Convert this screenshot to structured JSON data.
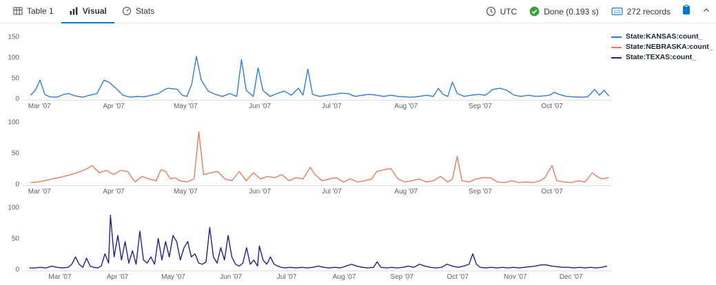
{
  "toolbar": {
    "tabs": [
      {
        "label": "Table 1",
        "icon": "table-icon",
        "active": false
      },
      {
        "label": "Visual",
        "icon": "bar-chart-icon",
        "active": true
      },
      {
        "label": "Stats",
        "icon": "gauge-icon",
        "active": false
      }
    ],
    "status": {
      "timezone": "UTC",
      "done": "Done (0.193 s)",
      "records": "272 records"
    },
    "accent_color": "#0078d4",
    "success_color": "#35a235"
  },
  "legend": {
    "items": [
      {
        "label": "State:KANSAS:count_",
        "color": "#2c7cd6"
      },
      {
        "label": "State:NEBRASKA:count_",
        "color": "#e8795a"
      },
      {
        "label": "State:TEXAS:count_",
        "color": "#172187"
      }
    ]
  },
  "chart_data": [
    {
      "type": "line",
      "name": "State:KANSAS:count_",
      "color": "#2c7cd6",
      "y_max": 150,
      "y_ticks": [
        0,
        50,
        100,
        150
      ],
      "x_range": [
        0,
        246
      ],
      "x_ticks": [
        {
          "pos": 7,
          "label": "Mar '07"
        },
        {
          "pos": 38,
          "label": "Apr '07"
        },
        {
          "pos": 68,
          "label": "May '07"
        },
        {
          "pos": 99,
          "label": "Jun '07"
        },
        {
          "pos": 129,
          "label": "Jul '07"
        },
        {
          "pos": 160,
          "label": "Aug '07"
        },
        {
          "pos": 191,
          "label": "Sep '07"
        },
        {
          "pos": 221,
          "label": "Oct '07"
        }
      ],
      "points": [
        [
          2,
          8
        ],
        [
          4,
          20
        ],
        [
          6,
          45
        ],
        [
          8,
          10
        ],
        [
          10,
          4
        ],
        [
          13,
          3
        ],
        [
          16,
          10
        ],
        [
          18,
          12
        ],
        [
          21,
          6
        ],
        [
          24,
          3
        ],
        [
          27,
          8
        ],
        [
          30,
          12
        ],
        [
          33,
          45
        ],
        [
          35,
          40
        ],
        [
          38,
          25
        ],
        [
          41,
          8
        ],
        [
          44,
          3
        ],
        [
          47,
          5
        ],
        [
          50,
          4
        ],
        [
          53,
          8
        ],
        [
          56,
          12
        ],
        [
          58,
          20
        ],
        [
          60,
          25
        ],
        [
          62,
          24
        ],
        [
          64,
          22
        ],
        [
          66,
          8
        ],
        [
          68,
          5
        ],
        [
          70,
          35
        ],
        [
          72,
          103
        ],
        [
          74,
          45
        ],
        [
          77,
          18
        ],
        [
          80,
          10
        ],
        [
          83,
          5
        ],
        [
          86,
          12
        ],
        [
          89,
          5
        ],
        [
          91,
          95
        ],
        [
          93,
          20
        ],
        [
          96,
          5
        ],
        [
          98,
          75
        ],
        [
          100,
          20
        ],
        [
          103,
          5
        ],
        [
          106,
          12
        ],
        [
          109,
          18
        ],
        [
          112,
          8
        ],
        [
          115,
          25
        ],
        [
          117,
          8
        ],
        [
          119,
          72
        ],
        [
          121,
          10
        ],
        [
          124,
          5
        ],
        [
          127,
          8
        ],
        [
          130,
          10
        ],
        [
          133,
          13
        ],
        [
          136,
          12
        ],
        [
          139,
          5
        ],
        [
          142,
          8
        ],
        [
          145,
          10
        ],
        [
          148,
          8
        ],
        [
          151,
          5
        ],
        [
          154,
          8
        ],
        [
          157,
          5
        ],
        [
          160,
          4
        ],
        [
          163,
          3
        ],
        [
          166,
          5
        ],
        [
          169,
          8
        ],
        [
          172,
          5
        ],
        [
          174,
          25
        ],
        [
          176,
          10
        ],
        [
          178,
          5
        ],
        [
          180,
          40
        ],
        [
          182,
          12
        ],
        [
          185,
          5
        ],
        [
          188,
          8
        ],
        [
          191,
          10
        ],
        [
          194,
          8
        ],
        [
          197,
          22
        ],
        [
          200,
          25
        ],
        [
          203,
          20
        ],
        [
          206,
          8
        ],
        [
          209,
          5
        ],
        [
          212,
          8
        ],
        [
          215,
          5
        ],
        [
          218,
          6
        ],
        [
          221,
          8
        ],
        [
          223,
          15
        ],
        [
          225,
          10
        ],
        [
          228,
          5
        ],
        [
          231,
          4
        ],
        [
          234,
          3
        ],
        [
          237,
          4
        ],
        [
          240,
          22
        ],
        [
          242,
          8
        ],
        [
          244,
          20
        ],
        [
          246,
          6
        ]
      ]
    },
    {
      "type": "line",
      "name": "State:NEBRASKA:count_",
      "color": "#e8795a",
      "y_max": 100,
      "y_ticks": [
        0,
        50,
        100
      ],
      "x_range": [
        0,
        246
      ],
      "x_ticks": [
        {
          "pos": 7,
          "label": "Mar '07"
        },
        {
          "pos": 38,
          "label": "Apr '07"
        },
        {
          "pos": 68,
          "label": "May '07"
        },
        {
          "pos": 99,
          "label": "Jun '07"
        },
        {
          "pos": 129,
          "label": "Jul '07"
        },
        {
          "pos": 160,
          "label": "Aug '07"
        },
        {
          "pos": 191,
          "label": "Sep '07"
        },
        {
          "pos": 221,
          "label": "Oct '07"
        }
      ],
      "points": [
        [
          2,
          2
        ],
        [
          5,
          3
        ],
        [
          8,
          5
        ],
        [
          11,
          8
        ],
        [
          14,
          10
        ],
        [
          17,
          13
        ],
        [
          20,
          16
        ],
        [
          23,
          20
        ],
        [
          26,
          25
        ],
        [
          28,
          30
        ],
        [
          31,
          18
        ],
        [
          34,
          22
        ],
        [
          37,
          15
        ],
        [
          40,
          22
        ],
        [
          43,
          20
        ],
        [
          46,
          3
        ],
        [
          49,
          12
        ],
        [
          52,
          8
        ],
        [
          55,
          5
        ],
        [
          57,
          23
        ],
        [
          59,
          20
        ],
        [
          61,
          8
        ],
        [
          63,
          10
        ],
        [
          65,
          5
        ],
        [
          68,
          3
        ],
        [
          71,
          8
        ],
        [
          73,
          85
        ],
        [
          75,
          15
        ],
        [
          78,
          18
        ],
        [
          81,
          20
        ],
        [
          84,
          8
        ],
        [
          87,
          5
        ],
        [
          90,
          20
        ],
        [
          93,
          5
        ],
        [
          96,
          18
        ],
        [
          99,
          8
        ],
        [
          102,
          12
        ],
        [
          105,
          10
        ],
        [
          108,
          15
        ],
        [
          111,
          5
        ],
        [
          114,
          10
        ],
        [
          117,
          8
        ],
        [
          120,
          27
        ],
        [
          122,
          15
        ],
        [
          125,
          5
        ],
        [
          128,
          8
        ],
        [
          131,
          10
        ],
        [
          134,
          3
        ],
        [
          137,
          8
        ],
        [
          140,
          3
        ],
        [
          143,
          5
        ],
        [
          146,
          8
        ],
        [
          148,
          20
        ],
        [
          151,
          23
        ],
        [
          154,
          25
        ],
        [
          157,
          8
        ],
        [
          160,
          3
        ],
        [
          163,
          5
        ],
        [
          166,
          8
        ],
        [
          169,
          3
        ],
        [
          172,
          5
        ],
        [
          175,
          12
        ],
        [
          178,
          3
        ],
        [
          180,
          8
        ],
        [
          182,
          45
        ],
        [
          184,
          5
        ],
        [
          187,
          3
        ],
        [
          190,
          8
        ],
        [
          193,
          10
        ],
        [
          196,
          10
        ],
        [
          199,
          3
        ],
        [
          202,
          2
        ],
        [
          205,
          5
        ],
        [
          208,
          2
        ],
        [
          211,
          3
        ],
        [
          214,
          2
        ],
        [
          217,
          5
        ],
        [
          219,
          10
        ],
        [
          222,
          30
        ],
        [
          224,
          5
        ],
        [
          227,
          3
        ],
        [
          230,
          2
        ],
        [
          233,
          5
        ],
        [
          236,
          3
        ],
        [
          239,
          18
        ],
        [
          241,
          12
        ],
        [
          243,
          8
        ],
        [
          246,
          10
        ]
      ]
    },
    {
      "type": "line",
      "name": "State:TEXAS:count_",
      "color": "#172187",
      "y_max": 100,
      "y_ticks": [
        0,
        50,
        100
      ],
      "x_range": [
        0,
        317
      ],
      "x_ticks": [
        {
          "pos": 20,
          "label": "Mar '07"
        },
        {
          "pos": 51,
          "label": "Apr '07"
        },
        {
          "pos": 81,
          "label": "May '07"
        },
        {
          "pos": 112,
          "label": "Jun '07"
        },
        {
          "pos": 142,
          "label": "Jul '07"
        },
        {
          "pos": 173,
          "label": "Aug '07"
        },
        {
          "pos": 204,
          "label": "Sep '07"
        },
        {
          "pos": 234,
          "label": "Oct '07"
        },
        {
          "pos": 265,
          "label": "Nov '07"
        },
        {
          "pos": 295,
          "label": "Dec '07"
        }
      ],
      "points": [
        [
          2,
          2
        ],
        [
          5,
          2
        ],
        [
          8,
          3
        ],
        [
          11,
          2
        ],
        [
          14,
          5
        ],
        [
          17,
          3
        ],
        [
          20,
          2
        ],
        [
          23,
          3
        ],
        [
          25,
          8
        ],
        [
          27,
          20
        ],
        [
          29,
          8
        ],
        [
          31,
          3
        ],
        [
          33,
          18
        ],
        [
          35,
          5
        ],
        [
          37,
          3
        ],
        [
          39,
          2
        ],
        [
          41,
          5
        ],
        [
          43,
          25
        ],
        [
          45,
          10
        ],
        [
          46,
          88
        ],
        [
          48,
          20
        ],
        [
          50,
          55
        ],
        [
          52,
          15
        ],
        [
          54,
          45
        ],
        [
          56,
          10
        ],
        [
          58,
          30
        ],
        [
          60,
          8
        ],
        [
          62,
          62
        ],
        [
          64,
          15
        ],
        [
          66,
          10
        ],
        [
          68,
          20
        ],
        [
          70,
          8
        ],
        [
          72,
          50
        ],
        [
          74,
          15
        ],
        [
          76,
          45
        ],
        [
          78,
          20
        ],
        [
          80,
          55
        ],
        [
          82,
          45
        ],
        [
          84,
          15
        ],
        [
          86,
          35
        ],
        [
          88,
          45
        ],
        [
          90,
          20
        ],
        [
          92,
          25
        ],
        [
          94,
          10
        ],
        [
          96,
          8
        ],
        [
          98,
          12
        ],
        [
          100,
          68
        ],
        [
          102,
          20
        ],
        [
          104,
          10
        ],
        [
          106,
          35
        ],
        [
          108,
          15
        ],
        [
          110,
          55
        ],
        [
          112,
          20
        ],
        [
          114,
          8
        ],
        [
          116,
          5
        ],
        [
          118,
          10
        ],
        [
          120,
          35
        ],
        [
          122,
          8
        ],
        [
          124,
          15
        ],
        [
          126,
          5
        ],
        [
          127,
          38
        ],
        [
          129,
          15
        ],
        [
          131,
          8
        ],
        [
          133,
          20
        ],
        [
          135,
          8
        ],
        [
          137,
          5
        ],
        [
          139,
          3
        ],
        [
          141,
          2
        ],
        [
          144,
          3
        ],
        [
          147,
          2
        ],
        [
          150,
          3
        ],
        [
          153,
          2
        ],
        [
          156,
          3
        ],
        [
          159,
          5
        ],
        [
          162,
          3
        ],
        [
          165,
          2
        ],
        [
          168,
          3
        ],
        [
          171,
          2
        ],
        [
          174,
          5
        ],
        [
          177,
          8
        ],
        [
          180,
          5
        ],
        [
          183,
          3
        ],
        [
          186,
          2
        ],
        [
          189,
          3
        ],
        [
          191,
          12
        ],
        [
          193,
          3
        ],
        [
          196,
          2
        ],
        [
          199,
          3
        ],
        [
          202,
          2
        ],
        [
          205,
          3
        ],
        [
          208,
          5
        ],
        [
          211,
          3
        ],
        [
          214,
          8
        ],
        [
          217,
          5
        ],
        [
          220,
          3
        ],
        [
          223,
          2
        ],
        [
          226,
          3
        ],
        [
          229,
          8
        ],
        [
          232,
          5
        ],
        [
          235,
          3
        ],
        [
          238,
          5
        ],
        [
          241,
          8
        ],
        [
          243,
          25
        ],
        [
          245,
          8
        ],
        [
          247,
          3
        ],
        [
          250,
          2
        ],
        [
          253,
          3
        ],
        [
          256,
          2
        ],
        [
          259,
          3
        ],
        [
          262,
          2
        ],
        [
          265,
          3
        ],
        [
          268,
          2
        ],
        [
          271,
          3
        ],
        [
          274,
          4
        ],
        [
          277,
          5
        ],
        [
          280,
          7
        ],
        [
          283,
          7
        ],
        [
          286,
          5
        ],
        [
          289,
          4
        ],
        [
          292,
          3
        ],
        [
          295,
          3
        ],
        [
          298,
          2
        ],
        [
          301,
          3
        ],
        [
          304,
          2
        ],
        [
          307,
          3
        ],
        [
          310,
          2
        ],
        [
          313,
          3
        ],
        [
          316,
          5
        ]
      ]
    }
  ]
}
